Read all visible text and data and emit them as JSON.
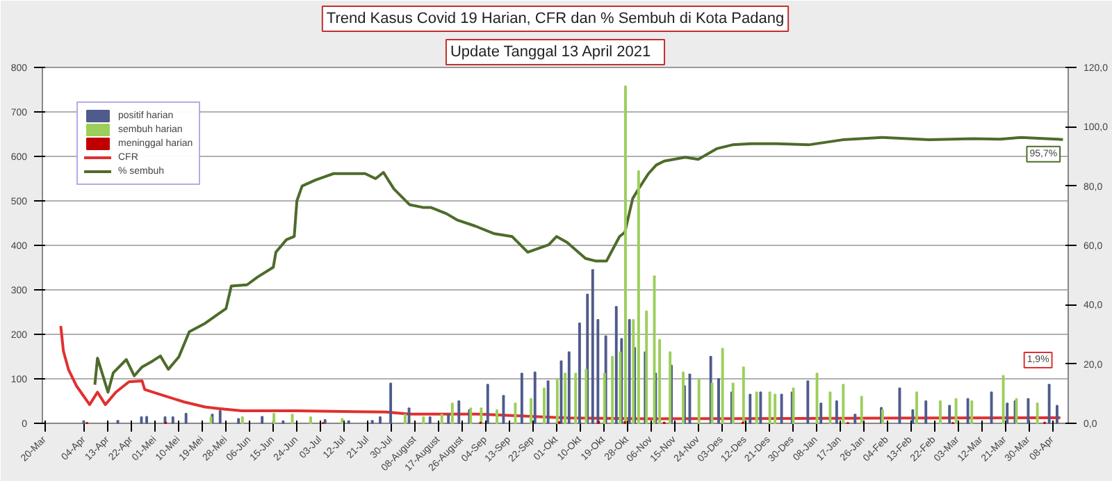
{
  "chart_data": {
    "type": "bar",
    "title": "Trend Kasus Covid 19 Harian, CFR dan % Sembuh di Kota Padang",
    "subtitle": "Update Tanggal  13 April  2021",
    "xlim": [
      "2020-03-19",
      "2021-04-14"
    ],
    "xticks": [
      {
        "value": "2020-03-20",
        "label": "20-Mar"
      },
      {
        "value": "2020-04-04",
        "label": "04-Apr"
      },
      {
        "value": "2020-04-13",
        "label": "13-Apr"
      },
      {
        "value": "2020-04-22",
        "label": "22-Apr"
      },
      {
        "value": "2020-05-01",
        "label": "01-Mei"
      },
      {
        "value": "2020-05-10",
        "label": "10-Mei"
      },
      {
        "value": "2020-05-19",
        "label": "19-Mei"
      },
      {
        "value": "2020-05-28",
        "label": "28-Mei"
      },
      {
        "value": "2020-06-06",
        "label": "06-Jun"
      },
      {
        "value": "2020-06-15",
        "label": "15-Jun"
      },
      {
        "value": "2020-06-24",
        "label": "24-Jun"
      },
      {
        "value": "2020-07-03",
        "label": "03-Jul"
      },
      {
        "value": "2020-07-12",
        "label": "12-Jul"
      },
      {
        "value": "2020-07-21",
        "label": "21-Jul"
      },
      {
        "value": "2020-07-30",
        "label": "30-Jul"
      },
      {
        "value": "2020-08-08",
        "label": "08-August"
      },
      {
        "value": "2020-08-17",
        "label": "17-August"
      },
      {
        "value": "2020-08-26",
        "label": "26-August"
      },
      {
        "value": "2020-09-04",
        "label": "04-Sep"
      },
      {
        "value": "2020-09-13",
        "label": "13-Sep"
      },
      {
        "value": "2020-09-22",
        "label": "22-Sep"
      },
      {
        "value": "2020-10-01",
        "label": "01-Okt"
      },
      {
        "value": "2020-10-10",
        "label": "10-Okt"
      },
      {
        "value": "2020-10-19",
        "label": "19-Okt"
      },
      {
        "value": "2020-10-28",
        "label": "28-Okt"
      },
      {
        "value": "2020-11-06",
        "label": "06-Nov"
      },
      {
        "value": "2020-11-15",
        "label": "15-Nov"
      },
      {
        "value": "2020-11-24",
        "label": "24-Nov"
      },
      {
        "value": "2020-12-03",
        "label": "03-Des"
      },
      {
        "value": "2020-12-12",
        "label": "12-Des"
      },
      {
        "value": "2020-12-21",
        "label": "21-Des"
      },
      {
        "value": "2020-12-30",
        "label": "30-Des"
      },
      {
        "value": "2021-01-08",
        "label": "08-Jan"
      },
      {
        "value": "2021-01-17",
        "label": "17-Jan"
      },
      {
        "value": "2021-01-26",
        "label": "26-Jan"
      },
      {
        "value": "2021-02-04",
        "label": "04-Feb"
      },
      {
        "value": "2021-02-13",
        "label": "13-Feb"
      },
      {
        "value": "2021-02-22",
        "label": "22-Feb"
      },
      {
        "value": "2021-03-03",
        "label": "03-Mar"
      },
      {
        "value": "2021-03-12",
        "label": "12-Mar"
      },
      {
        "value": "2021-03-21",
        "label": "21-Mar"
      },
      {
        "value": "2021-03-30",
        "label": "30-Mar"
      },
      {
        "value": "2021-04-08",
        "label": "08-Apr"
      }
    ],
    "ylim": [
      0,
      800
    ],
    "yticks": [
      0,
      100,
      200,
      300,
      400,
      500,
      600,
      700,
      800
    ],
    "y2lim": [
      0,
      120
    ],
    "y2ticks": [
      {
        "value": 0,
        "label": "0,0"
      },
      {
        "value": 20,
        "label": "20,0"
      },
      {
        "value": 40,
        "label": "40,0"
      },
      {
        "value": 60,
        "label": "60,0"
      },
      {
        "value": 80,
        "label": "80,0"
      },
      {
        "value": 100,
        "label": "100,0"
      },
      {
        "value": 120,
        "label": "120,0"
      }
    ],
    "grid": "y",
    "legend": "top left",
    "series": [
      {
        "name": "positif harian",
        "color": "#4f5b8c",
        "x": [
          "2020-04-04",
          "2020-04-17",
          "2020-04-26",
          "2020-04-28",
          "2020-05-05",
          "2020-05-08",
          "2020-05-13",
          "2020-05-23",
          "2020-05-26",
          "2020-06-02",
          "2020-06-11",
          "2020-06-19",
          "2020-07-05",
          "2020-07-14",
          "2020-07-23",
          "2020-07-26",
          "2020-07-30",
          "2020-08-06",
          "2020-08-14",
          "2020-08-21",
          "2020-08-25",
          "2020-08-29",
          "2020-09-05",
          "2020-09-11",
          "2020-09-18",
          "2020-09-23",
          "2020-09-28",
          "2020-10-03",
          "2020-10-06",
          "2020-10-10",
          "2020-10-13",
          "2020-10-15",
          "2020-10-17",
          "2020-10-20",
          "2020-10-24",
          "2020-10-26",
          "2020-10-29",
          "2020-10-31",
          "2020-11-04",
          "2020-11-08",
          "2020-11-14",
          "2020-11-19",
          "2020-11-21",
          "2020-11-29",
          "2020-12-02",
          "2020-12-07",
          "2020-12-14",
          "2020-12-18",
          "2020-12-26",
          "2020-12-30",
          "2021-01-05",
          "2021-01-10",
          "2021-01-16",
          "2021-01-23",
          "2021-02-02",
          "2021-02-09",
          "2021-02-14",
          "2021-02-19",
          "2021-02-28",
          "2021-03-07",
          "2021-03-16",
          "2021-03-22",
          "2021-03-25",
          "2021-03-30",
          "2021-04-07",
          "2021-04-10"
        ],
        "values": [
          5,
          6,
          14,
          15,
          14,
          14,
          22,
          20,
          28,
          10,
          15,
          5,
          8,
          5,
          6,
          14,
          90,
          34,
          14,
          20,
          50,
          30,
          87,
          62,
          112,
          115,
          95,
          140,
          160,
          225,
          290,
          345,
          233,
          196,
          262,
          190,
          233,
          170,
          160,
          112,
          130,
          84,
          110,
          150,
          100,
          70,
          65,
          70,
          65,
          70,
          95,
          45,
          50,
          20,
          35,
          79,
          30,
          50,
          40,
          55,
          70,
          45,
          50,
          55,
          87,
          40
        ]
      },
      {
        "name": "sembuh harian",
        "color": "#9bcf5a",
        "x": [
          "2020-05-22",
          "2020-06-03",
          "2020-06-15",
          "2020-06-22",
          "2020-06-29",
          "2020-07-11",
          "2020-08-04",
          "2020-08-11",
          "2020-08-18",
          "2020-08-22",
          "2020-08-29",
          "2020-09-02",
          "2020-09-08",
          "2020-09-15",
          "2020-09-21",
          "2020-09-26",
          "2020-10-01",
          "2020-10-04",
          "2020-10-08",
          "2020-10-12",
          "2020-10-19",
          "2020-10-22",
          "2020-10-25",
          "2020-10-27",
          "2020-10-30",
          "2020-11-01",
          "2020-11-04",
          "2020-11-07",
          "2020-11-09",
          "2020-11-13",
          "2020-11-18",
          "2020-11-24",
          "2020-11-29",
          "2020-12-03",
          "2020-12-07",
          "2020-12-11",
          "2020-12-16",
          "2020-12-21",
          "2020-12-23",
          "2020-12-30",
          "2021-01-08",
          "2021-01-13",
          "2021-01-18",
          "2021-01-25",
          "2021-02-02",
          "2021-02-15",
          "2021-02-24",
          "2021-03-02",
          "2021-03-08",
          "2021-03-20",
          "2021-03-25",
          "2021-04-02"
        ],
        "values": [
          14,
          14,
          22,
          20,
          14,
          10,
          20,
          14,
          20,
          45,
          34,
          34,
          30,
          45,
          55,
          79,
          100,
          112,
          112,
          121,
          112,
          150,
          160,
          758,
          233,
          567,
          252,
          331,
          188,
          160,
          115,
          100,
          90,
          168,
          90,
          126,
          70,
          70,
          65,
          79,
          112,
          70,
          87,
          60,
          30,
          70,
          50,
          55,
          50,
          107,
          55,
          45
        ]
      },
      {
        "name": "meninggal harian",
        "color": "#c00000",
        "x": [
          "2020-04-05",
          "2020-05-05",
          "2020-07-04",
          "2020-09-02",
          "2020-10-02",
          "2020-10-17",
          "2020-10-27",
          "2020-11-11",
          "2020-12-11",
          "2021-01-20",
          "2021-03-01",
          "2021-04-05"
        ],
        "values": [
          1,
          2,
          1,
          2,
          3,
          4,
          3,
          2,
          2,
          1,
          1,
          2
        ]
      },
      {
        "name": "CFR",
        "type": "line",
        "axis": "y2",
        "color": "#e03030",
        "x": [
          "2020-03-26",
          "2020-03-27",
          "2020-03-29",
          "2020-04-01",
          "2020-04-06",
          "2020-04-09",
          "2020-04-12",
          "2020-04-16",
          "2020-04-21",
          "2020-04-26",
          "2020-04-27",
          "2020-05-03",
          "2020-05-12",
          "2020-05-20",
          "2020-05-25",
          "2020-06-03",
          "2020-06-24",
          "2020-07-28",
          "2020-08-06",
          "2020-09-01",
          "2020-10-05",
          "2020-11-05",
          "2020-12-11",
          "2021-01-20",
          "2021-03-01",
          "2021-04-11"
        ],
        "values": [
          32.8,
          24.4,
          18,
          12.6,
          6.3,
          10.5,
          6.3,
          10.5,
          14,
          14.3,
          11.4,
          9.7,
          7.2,
          5.5,
          5,
          4.2,
          4.2,
          3.8,
          3.1,
          3.1,
          1.8,
          1.5,
          1.6,
          1.7,
          1.8,
          1.9
        ]
      },
      {
        "name": "% sembuh",
        "type": "line",
        "axis": "y2",
        "color": "#4e6b2a",
        "x": [
          "2020-04-08",
          "2020-04-09",
          "2020-04-13",
          "2020-04-15",
          "2020-04-20",
          "2020-04-23",
          "2020-04-26",
          "2020-04-30",
          "2020-05-03",
          "2020-05-06",
          "2020-05-10",
          "2020-05-14",
          "2020-05-20",
          "2020-05-28",
          "2020-05-30",
          "2020-06-05",
          "2020-06-09",
          "2020-06-15",
          "2020-06-16",
          "2020-06-20",
          "2020-06-23",
          "2020-06-24",
          "2020-06-26",
          "2020-07-01",
          "2020-07-08",
          "2020-07-15",
          "2020-07-20",
          "2020-07-24",
          "2020-07-27",
          "2020-07-31",
          "2020-08-06",
          "2020-08-11",
          "2020-08-14",
          "2020-08-20",
          "2020-08-24",
          "2020-08-31",
          "2020-09-07",
          "2020-09-14",
          "2020-09-20",
          "2020-09-28",
          "2020-10-01",
          "2020-10-05",
          "2020-10-12",
          "2020-10-16",
          "2020-10-20",
          "2020-10-25",
          "2020-10-27",
          "2020-10-30",
          "2020-11-01",
          "2020-11-05",
          "2020-11-08",
          "2020-11-11",
          "2020-11-19",
          "2020-11-24",
          "2020-12-01",
          "2020-12-07",
          "2020-12-14",
          "2020-12-24",
          "2021-01-05",
          "2021-01-18",
          "2021-02-02",
          "2021-02-20",
          "2021-03-09",
          "2021-03-19",
          "2021-03-27",
          "2021-04-12"
        ],
        "values": [
          13,
          22,
          10.5,
          17,
          21.5,
          16,
          19,
          21,
          22.7,
          18.2,
          22.4,
          30.9,
          33.7,
          38.7,
          46.3,
          46.7,
          49.3,
          52.6,
          57.7,
          61.9,
          63,
          75,
          80,
          82,
          84.2,
          84.2,
          84.2,
          82.5,
          84.6,
          79,
          73.7,
          72.8,
          72.8,
          70.7,
          68.6,
          66.5,
          64,
          63,
          57.7,
          60.2,
          63,
          61,
          55.6,
          54.7,
          54.7,
          63,
          64.4,
          75.8,
          78.7,
          84.2,
          87.1,
          88.4,
          89.7,
          89,
          92.6,
          93.9,
          94.3,
          94.3,
          93.9,
          95.6,
          96.4,
          95.6,
          96,
          95.8,
          96.4,
          95.7
        ]
      }
    ],
    "annotations": [
      "95,7%",
      "1,9%"
    ]
  }
}
